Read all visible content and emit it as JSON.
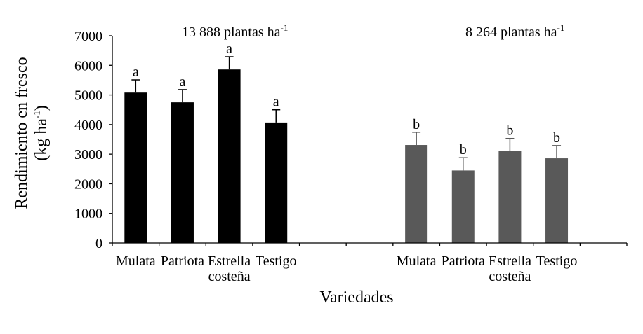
{
  "chart_data": {
    "type": "bar",
    "ylabel": {
      "line1": "Rendimiento en fresco",
      "line2_prefix": "(kg ha",
      "line2_sup": "-1",
      "line2_suffix": ")"
    },
    "xlabel": "Variedades",
    "ylim": [
      0,
      7000
    ],
    "yticks": [
      0,
      1000,
      2000,
      3000,
      4000,
      5000,
      6000,
      7000
    ],
    "grid": false,
    "groups": [
      {
        "title": {
          "text": "13 888 plantas ha",
          "sup": "-1"
        },
        "color": "#000000",
        "categories": [
          [
            "Mulata"
          ],
          [
            "Patriota"
          ],
          [
            "Estrella",
            "costeña"
          ],
          [
            "Testigo"
          ]
        ],
        "values": [
          5080,
          4750,
          5860,
          4070
        ],
        "error": [
          430,
          430,
          430,
          430
        ],
        "letters": [
          "a",
          "a",
          "a",
          "a"
        ]
      },
      {
        "title": {
          "text": "8 264 plantas ha",
          "sup": "-1"
        },
        "color": "#595959",
        "categories": [
          [
            "Mulata"
          ],
          [
            "Patriota"
          ],
          [
            "Estrella",
            "costeña"
          ],
          [
            "Testigo"
          ]
        ],
        "values": [
          3310,
          2450,
          3100,
          2860
        ],
        "error": [
          430,
          430,
          430,
          430
        ],
        "letters": [
          "b",
          "b",
          "b",
          "b"
        ]
      }
    ]
  }
}
